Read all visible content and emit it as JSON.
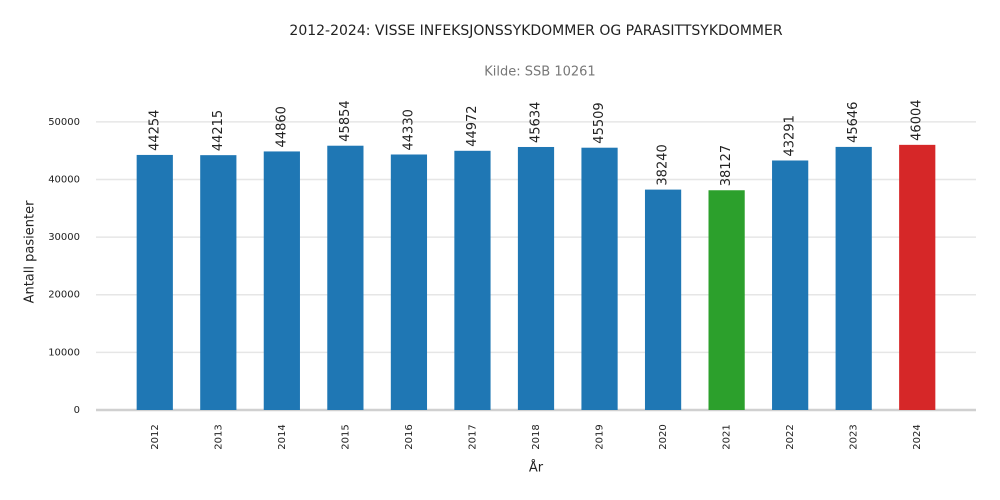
{
  "chart_data": {
    "type": "bar",
    "title": "2012-2024: VISSE INFEKSJONSSYKDOMMER OG PARASITTSYKDOMMER",
    "subtitle": "Kilde: SSB 10261",
    "y_label": "Antall pasienter",
    "x_label": "År",
    "categories": [
      "2012",
      "2013",
      "2014",
      "2015",
      "2016",
      "2017",
      "2018",
      "2019",
      "2020",
      "2021",
      "2022",
      "2023",
      "2024"
    ],
    "values": [
      44254,
      44215,
      44860,
      45854,
      44330,
      44972,
      45634,
      45509,
      38240,
      38127,
      43291,
      45646,
      46004
    ],
    "colors": [
      "#1f77b4",
      "#1f77b4",
      "#1f77b4",
      "#1f77b4",
      "#1f77b4",
      "#1f77b4",
      "#1f77b4",
      "#1f77b4",
      "#1f77b4",
      "#2ca02c",
      "#1f77b4",
      "#1f77b4",
      "#d62728"
    ],
    "ylim": [
      0,
      55000
    ],
    "yticks": [
      0,
      10000,
      20000,
      30000,
      40000,
      50000
    ],
    "grid": true
  }
}
